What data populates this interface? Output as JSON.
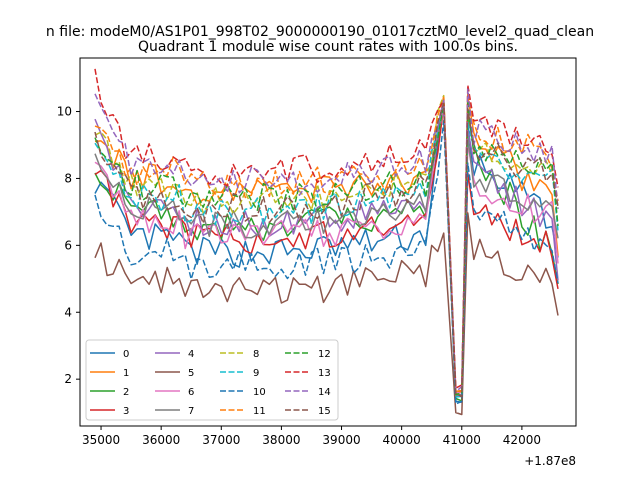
{
  "chart_data": {
    "type": "line",
    "suptitle": "n file: modeM0/AS1P01_998T02_9000000190_01017cztM0_level2_quad_clean",
    "title": "Quadrant 1 module wise count rates with 100.0s bins.",
    "xlabel": "",
    "ylabel": "",
    "x_offset_label": "+1.87e8",
    "xlim": [
      34650,
      42900
    ],
    "ylim": [
      0.6,
      11.6
    ],
    "xticks": [
      35000,
      36000,
      37000,
      38000,
      39000,
      40000,
      41000,
      42000
    ],
    "yticks": [
      2,
      4,
      6,
      8,
      10
    ],
    "x_start": 34900,
    "x_step": 100,
    "grid": false,
    "legend_position": "lower-left",
    "legend_columns": 4,
    "series": [
      {
        "name": "0",
        "color": "#1f77b4",
        "dashed": false,
        "start": 8.0,
        "level": 5.8,
        "tail": 6.3,
        "peak": 10.2,
        "min": 1.3,
        "post_peak": 9.6,
        "end": 5.5
      },
      {
        "name": "1",
        "color": "#ff7f0e",
        "dashed": false,
        "start": 9.5,
        "level": 7.6,
        "tail": 8.0,
        "peak": 10.4,
        "min": 1.6,
        "post_peak": 10.5,
        "end": 5.9
      },
      {
        "name": "2",
        "color": "#2ca02c",
        "dashed": false,
        "start": 8.5,
        "level": 6.6,
        "tail": 7.0,
        "peak": 10.2,
        "min": 1.4,
        "post_peak": 9.8,
        "end": 4.5
      },
      {
        "name": "3",
        "color": "#d62728",
        "dashed": false,
        "start": 8.4,
        "level": 6.2,
        "tail": 6.6,
        "peak": 10.1,
        "min": 1.5,
        "post_peak": 8.2,
        "end": 4.7
      },
      {
        "name": "4",
        "color": "#9467bd",
        "dashed": false,
        "start": 10.0,
        "level": 6.7,
        "tail": 7.1,
        "peak": 10.3,
        "min": 1.5,
        "post_peak": 9.4,
        "end": 5.3
      },
      {
        "name": "5",
        "color": "#8c564b",
        "dashed": false,
        "start": 5.8,
        "level": 4.6,
        "tail": 5.2,
        "peak": 6.3,
        "min": 1.0,
        "post_peak": 7.0,
        "end": 3.7
      },
      {
        "name": "6",
        "color": "#e377c2",
        "dashed": false,
        "start": 8.6,
        "level": 6.3,
        "tail": 6.7,
        "peak": 10.0,
        "min": 1.6,
        "post_peak": 9.0,
        "end": 5.6
      },
      {
        "name": "7",
        "color": "#7f7f7f",
        "dashed": false,
        "start": 8.8,
        "level": 6.6,
        "tail": 7.3,
        "peak": 10.2,
        "min": 1.5,
        "post_peak": 9.3,
        "end": 5.8
      },
      {
        "name": "8",
        "color": "#bcbd22",
        "dashed": true,
        "start": 9.3,
        "level": 7.3,
        "tail": 7.9,
        "peak": 10.4,
        "min": 1.6,
        "post_peak": 10.0,
        "end": 7.1
      },
      {
        "name": "9",
        "color": "#17becf",
        "dashed": true,
        "start": 9.0,
        "level": 7.0,
        "tail": 7.6,
        "peak": 10.2,
        "min": 1.5,
        "post_peak": 9.7,
        "end": 6.7
      },
      {
        "name": "10",
        "color": "#1f77b4",
        "dashed": true,
        "start": 7.4,
        "level": 5.4,
        "tail": 5.8,
        "peak": 9.8,
        "min": 1.3,
        "post_peak": 8.4,
        "end": 4.6
      },
      {
        "name": "11",
        "color": "#ff7f0e",
        "dashed": true,
        "start": 9.4,
        "level": 7.8,
        "tail": 8.3,
        "peak": 10.5,
        "min": 1.7,
        "post_peak": 10.6,
        "end": 7.4
      },
      {
        "name": "12",
        "color": "#2ca02c",
        "dashed": true,
        "start": 9.0,
        "level": 7.4,
        "tail": 7.9,
        "peak": 10.3,
        "min": 1.6,
        "post_peak": 10.2,
        "end": 7.0
      },
      {
        "name": "13",
        "color": "#d62728",
        "dashed": true,
        "start": 11.0,
        "level": 8.2,
        "tail": 8.8,
        "peak": 10.4,
        "min": 1.8,
        "post_peak": 10.8,
        "end": 7.6
      },
      {
        "name": "14",
        "color": "#9467bd",
        "dashed": true,
        "start": 10.2,
        "level": 7.9,
        "tail": 8.5,
        "peak": 10.4,
        "min": 1.7,
        "post_peak": 10.6,
        "end": 7.3
      },
      {
        "name": "15",
        "color": "#8c564b",
        "dashed": true,
        "start": 9.0,
        "level": 7.1,
        "tail": 7.7,
        "peak": 10.3,
        "min": 1.5,
        "post_peak": 10.1,
        "end": 6.8
      }
    ]
  }
}
